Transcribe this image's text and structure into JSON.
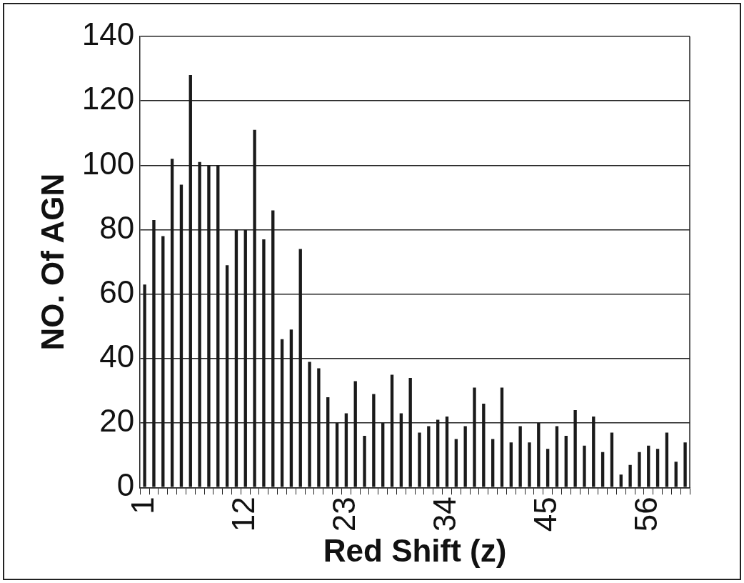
{
  "chart_data": {
    "type": "bar",
    "xlabel": "Red Shift (z)",
    "ylabel": "NO. Of AGN",
    "categories": [
      "1",
      null,
      null,
      null,
      null,
      null,
      null,
      null,
      null,
      null,
      null,
      "12",
      null,
      null,
      null,
      null,
      null,
      null,
      null,
      null,
      null,
      null,
      "23",
      null,
      null,
      null,
      null,
      null,
      null,
      null,
      null,
      null,
      null,
      "34",
      null,
      null,
      null,
      null,
      null,
      null,
      null,
      null,
      null,
      null,
      "45",
      null,
      null,
      null,
      null,
      null,
      null,
      null,
      null,
      null,
      null,
      "56",
      null,
      null,
      null,
      null
    ],
    "values": [
      63,
      83,
      78,
      102,
      94,
      128,
      101,
      100,
      100,
      69,
      80,
      80,
      111,
      77,
      86,
      46,
      49,
      74,
      39,
      37,
      28,
      20,
      23,
      33,
      16,
      29,
      20,
      35,
      23,
      34,
      17,
      19,
      21,
      22,
      15,
      19,
      31,
      26,
      15,
      31,
      14,
      19,
      14,
      20,
      12,
      19,
      16,
      24,
      13,
      22,
      11,
      17,
      4,
      7,
      11,
      13,
      12,
      17,
      8,
      14
    ],
    "color": "#1a1a1a",
    "ylim": [
      0,
      140
    ],
    "yticks": [
      0,
      20,
      40,
      60,
      80,
      100,
      120,
      140
    ],
    "grid": "y",
    "legend": false
  }
}
